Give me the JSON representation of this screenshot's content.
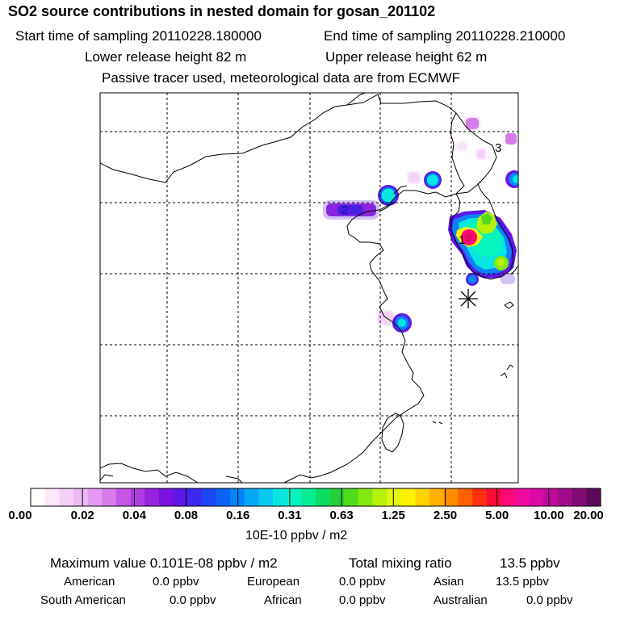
{
  "title": "SO2 source contributions in nested domain for gosan_201102",
  "start_label": "Start time of sampling 20110228.180000",
  "end_label": "End time of sampling 20110228.210000",
  "lower_label": "Lower release height   82 m",
  "upper_label": "Upper release height   62 m",
  "passive_label": "Passive tracer used, meteorological data are from ECMWF",
  "markers": {
    "m1": "1",
    "m2": "2",
    "m3": "3"
  },
  "colorbar": {
    "labels": [
      "0.00",
      "0.02",
      "0.04",
      "0.08",
      "0.16",
      "0.31",
      "0.63",
      "1.25",
      "2.50",
      "5.00",
      "10.00",
      "20.00"
    ],
    "unit": "10E-10 ppbv / m2",
    "colors": [
      "#ffffff",
      "#fbe8fb",
      "#f5d0f8",
      "#eebaf5",
      "#e59af1",
      "#d77aec",
      "#c555e6",
      "#b03be3",
      "#9722dd",
      "#7b12e0",
      "#5d18e8",
      "#3c28f0",
      "#1d46f6",
      "#0a62f8",
      "#0584fa",
      "#06a8f6",
      "#08c9ef",
      "#07e6e0",
      "#06f5bf",
      "#05ec92",
      "#0ddc62",
      "#23d23a",
      "#4fdb1c",
      "#86e812",
      "#b8f20b",
      "#e4f70a",
      "#fff200",
      "#ffd200",
      "#ffb000",
      "#ff8a00",
      "#ff5f00",
      "#ff2f10",
      "#ff0a35",
      "#ff0a78",
      "#f20aa0",
      "#d90aa8",
      "#be0a9a",
      "#a10a88",
      "#820a74",
      "#5c0a5a"
    ]
  },
  "stats": {
    "max_label": "Maximum value  0.101E-08 ppbv / m2",
    "total_label": "Total mixing ratio",
    "total_value": "13.5 ppbv",
    "american_label": "American",
    "american_value": "0.0 ppbv",
    "european_label": "European",
    "european_value": "0.0 ppbv",
    "asian_label": "Asian",
    "asian_value": "13.5 ppbv",
    "south_american_label": "South American",
    "south_american_value": "0.0 ppbv",
    "african_label": "African",
    "african_value": "0.0 ppbv",
    "australian_label": "Australian",
    "australian_value": "0.0 ppbv"
  }
}
